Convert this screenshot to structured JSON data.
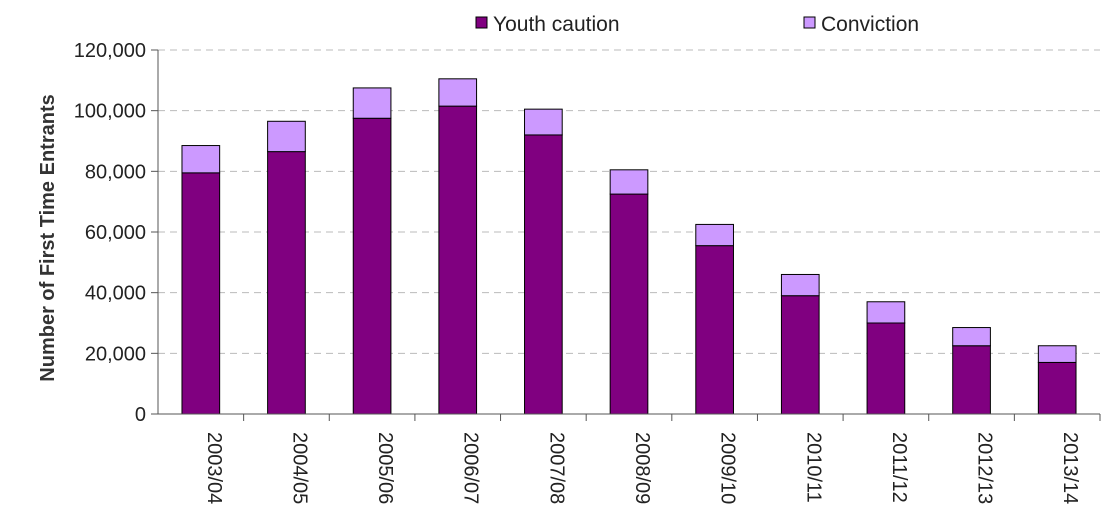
{
  "chart_data": {
    "type": "bar",
    "stacked": true,
    "title": "",
    "xlabel": "",
    "ylabel": "Number of First Time Entrants",
    "ylim": [
      0,
      120000
    ],
    "yticks": [
      0,
      20000,
      40000,
      60000,
      80000,
      100000,
      120000
    ],
    "ytick_labels": [
      "0",
      "20,000",
      "40,000",
      "60,000",
      "80,000",
      "100,000",
      "120,000"
    ],
    "grid": "horizontal dashed",
    "legend_position": "top",
    "categories": [
      "2003/04",
      "2004/05",
      "2005/06",
      "2006/07",
      "2007/08",
      "2008/09",
      "2009/10",
      "2010/11",
      "2011/12",
      "2012/13",
      "2013/14"
    ],
    "series": [
      {
        "name": "Youth caution",
        "color": "#800080",
        "values": [
          79500,
          86500,
          97500,
          101500,
          92000,
          72500,
          55500,
          39000,
          30000,
          22500,
          17000
        ]
      },
      {
        "name": "Conviction",
        "color": "#CC99FF",
        "values": [
          9000,
          10000,
          10000,
          9000,
          8500,
          8000,
          7000,
          7000,
          7000,
          6000,
          5500
        ]
      }
    ]
  }
}
